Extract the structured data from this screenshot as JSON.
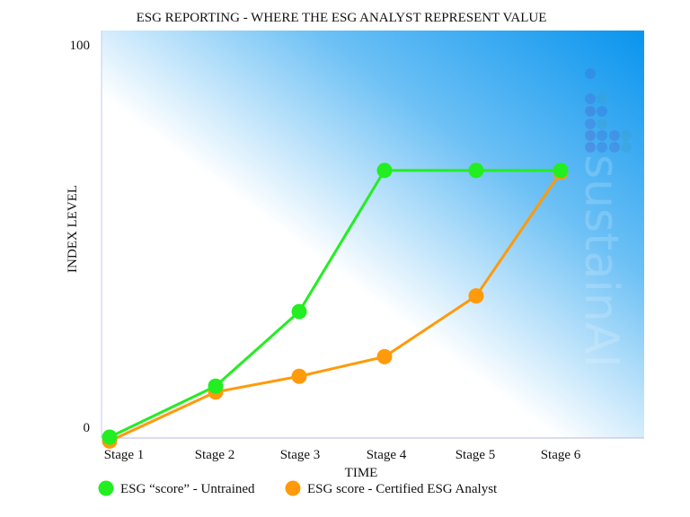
{
  "chart_data": {
    "type": "line",
    "title": "ESG REPORTING - WHERE THE ESG ANALYST REPRESENT VALUE",
    "xlabel": "TIME",
    "ylabel": "INDEX LEVEL",
    "categories": [
      "Stage 1",
      "Stage 2",
      "Stage 3",
      "Stage 4",
      "Stage 5",
      "Stage 6"
    ],
    "ylim": [
      0,
      100
    ],
    "yticks": [
      "0",
      "100"
    ],
    "grid": false,
    "legend_position": "bottom",
    "series": [
      {
        "name": "ESG “score” - Untrained",
        "color": "#22ee22",
        "values": [
          0,
          13,
          32,
          68,
          68,
          68
        ]
      },
      {
        "name": "ESG score - Certified ESG Analyst",
        "color": "#ff9a0a",
        "values": [
          -1,
          11.5,
          15.5,
          20.5,
          36,
          67.5
        ]
      }
    ],
    "watermark": "sustainAI"
  }
}
